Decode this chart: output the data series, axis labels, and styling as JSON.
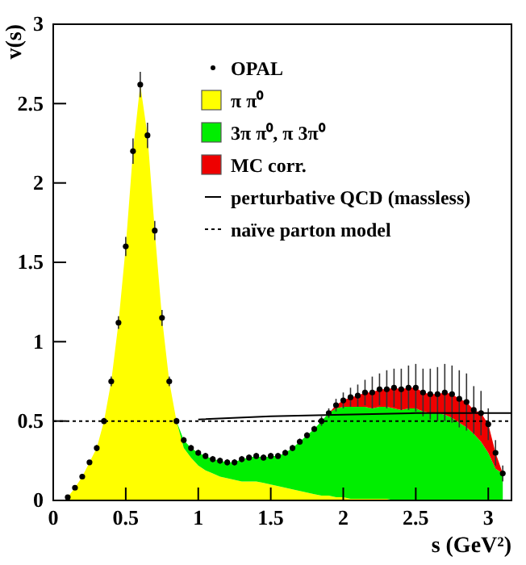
{
  "chart_data": {
    "type": "area",
    "xlabel": "s (GeV²)",
    "ylabel": "v(s)",
    "xlim": [
      0,
      3.16
    ],
    "ylim": [
      0,
      3
    ],
    "xticks": [
      0,
      0.5,
      1,
      1.5,
      2,
      2.5,
      3
    ],
    "yticks": [
      0,
      0.5,
      1,
      1.5,
      2,
      2.5,
      3
    ],
    "stacked": true,
    "legend": "top right",
    "grid": false,
    "x": [
      0.1,
      0.15,
      0.2,
      0.25,
      0.3,
      0.35,
      0.4,
      0.45,
      0.5,
      0.55,
      0.6,
      0.65,
      0.7,
      0.75,
      0.8,
      0.85,
      0.9,
      0.95,
      1.0,
      1.05,
      1.1,
      1.15,
      1.2,
      1.25,
      1.3,
      1.35,
      1.4,
      1.45,
      1.5,
      1.55,
      1.6,
      1.65,
      1.7,
      1.75,
      1.8,
      1.85,
      1.9,
      1.95,
      2.0,
      2.05,
      2.1,
      2.15,
      2.2,
      2.25,
      2.3,
      2.35,
      2.4,
      2.45,
      2.5,
      2.55,
      2.6,
      2.65,
      2.7,
      2.75,
      2.8,
      2.85,
      2.9,
      2.95,
      3.0,
      3.05,
      3.1
    ],
    "series": [
      {
        "name": "OPAL",
        "type": "scatter",
        "marker": "circle",
        "color": "#000000",
        "values": [
          0.02,
          0.08,
          0.15,
          0.24,
          0.33,
          0.5,
          0.75,
          1.12,
          1.6,
          2.2,
          2.62,
          2.3,
          1.7,
          1.15,
          0.75,
          0.5,
          0.38,
          0.33,
          0.3,
          0.28,
          0.26,
          0.25,
          0.24,
          0.24,
          0.26,
          0.27,
          0.28,
          0.27,
          0.28,
          0.28,
          0.3,
          0.33,
          0.37,
          0.41,
          0.45,
          0.5,
          0.55,
          0.6,
          0.63,
          0.65,
          0.66,
          0.68,
          0.68,
          0.7,
          0.7,
          0.71,
          0.7,
          0.71,
          0.71,
          0.68,
          0.67,
          0.67,
          0.68,
          0.67,
          0.64,
          0.62,
          0.57,
          0.55,
          0.48,
          0.3,
          0.17
        ],
        "errors": [
          0.01,
          0.01,
          0.01,
          0.01,
          0.02,
          0.02,
          0.03,
          0.04,
          0.06,
          0.08,
          0.08,
          0.08,
          0.06,
          0.05,
          0.03,
          0.02,
          0.02,
          0.02,
          0.02,
          0.02,
          0.02,
          0.02,
          0.02,
          0.02,
          0.02,
          0.02,
          0.02,
          0.02,
          0.02,
          0.02,
          0.02,
          0.02,
          0.02,
          0.02,
          0.02,
          0.03,
          0.03,
          0.04,
          0.05,
          0.06,
          0.07,
          0.08,
          0.1,
          0.1,
          0.12,
          0.12,
          0.13,
          0.14,
          0.15,
          0.15,
          0.16,
          0.17,
          0.18,
          0.18,
          0.18,
          0.18,
          0.15,
          0.14,
          0.1,
          0.08,
          0.05
        ]
      },
      {
        "name": "π π⁰",
        "color": "#ffff00",
        "values": [
          0.02,
          0.08,
          0.15,
          0.24,
          0.33,
          0.5,
          0.75,
          1.12,
          1.6,
          2.2,
          2.62,
          2.3,
          1.7,
          1.15,
          0.75,
          0.5,
          0.33,
          0.27,
          0.22,
          0.19,
          0.17,
          0.15,
          0.14,
          0.13,
          0.12,
          0.12,
          0.12,
          0.11,
          0.1,
          0.09,
          0.08,
          0.07,
          0.06,
          0.05,
          0.04,
          0.03,
          0.03,
          0.02,
          0.02,
          0.01,
          0.01,
          0.01,
          0.01,
          0.01,
          0.01,
          0,
          null,
          null,
          null,
          null,
          null,
          null,
          null,
          null,
          null,
          null,
          null,
          null,
          null,
          null,
          null
        ]
      },
      {
        "name": "3π π⁰, π 3π⁰",
        "color": "#00ee00",
        "values": [
          null,
          null,
          null,
          null,
          null,
          null,
          null,
          null,
          null,
          null,
          null,
          null,
          null,
          null,
          null,
          0,
          0.05,
          0.06,
          0.08,
          0.09,
          0.09,
          0.1,
          0.1,
          0.11,
          0.14,
          0.15,
          0.16,
          0.16,
          0.18,
          0.19,
          0.22,
          0.26,
          0.31,
          0.36,
          0.41,
          0.47,
          0.52,
          0.56,
          0.57,
          0.58,
          0.58,
          0.58,
          0.57,
          0.58,
          0.58,
          0.58,
          0.57,
          0.58,
          0.58,
          0.56,
          0.55,
          0.55,
          0.54,
          0.52,
          0.49,
          0.46,
          0.42,
          0.37,
          0.3,
          0.2,
          0.17
        ]
      },
      {
        "name": "MC corr.",
        "color": "#ee0000",
        "values": [
          null,
          null,
          null,
          null,
          null,
          null,
          null,
          null,
          null,
          null,
          null,
          null,
          null,
          null,
          null,
          null,
          null,
          null,
          null,
          null,
          null,
          null,
          null,
          null,
          null,
          null,
          null,
          null,
          null,
          null,
          null,
          null,
          null,
          null,
          null,
          null,
          0,
          0.02,
          0.04,
          0.06,
          0.07,
          0.09,
          0.1,
          0.11,
          0.11,
          0.13,
          0.13,
          0.13,
          0.13,
          0.12,
          0.12,
          0.12,
          0.14,
          0.15,
          0.15,
          0.16,
          0.15,
          0.18,
          0.18,
          0.1,
          0
        ]
      },
      {
        "name": "perturbative QCD (massless)",
        "type": "line",
        "line_style": "solid",
        "color": "#000000",
        "x": [
          1.0,
          1.5,
          2.0,
          2.5,
          3.16
        ],
        "values": [
          0.51,
          0.53,
          0.54,
          0.55,
          0.55
        ]
      },
      {
        "name": "naïve parton model",
        "type": "line",
        "line_style": "dotted",
        "color": "#000000",
        "x": [
          0,
          3.16
        ],
        "values": [
          0.5,
          0.5
        ]
      }
    ]
  }
}
